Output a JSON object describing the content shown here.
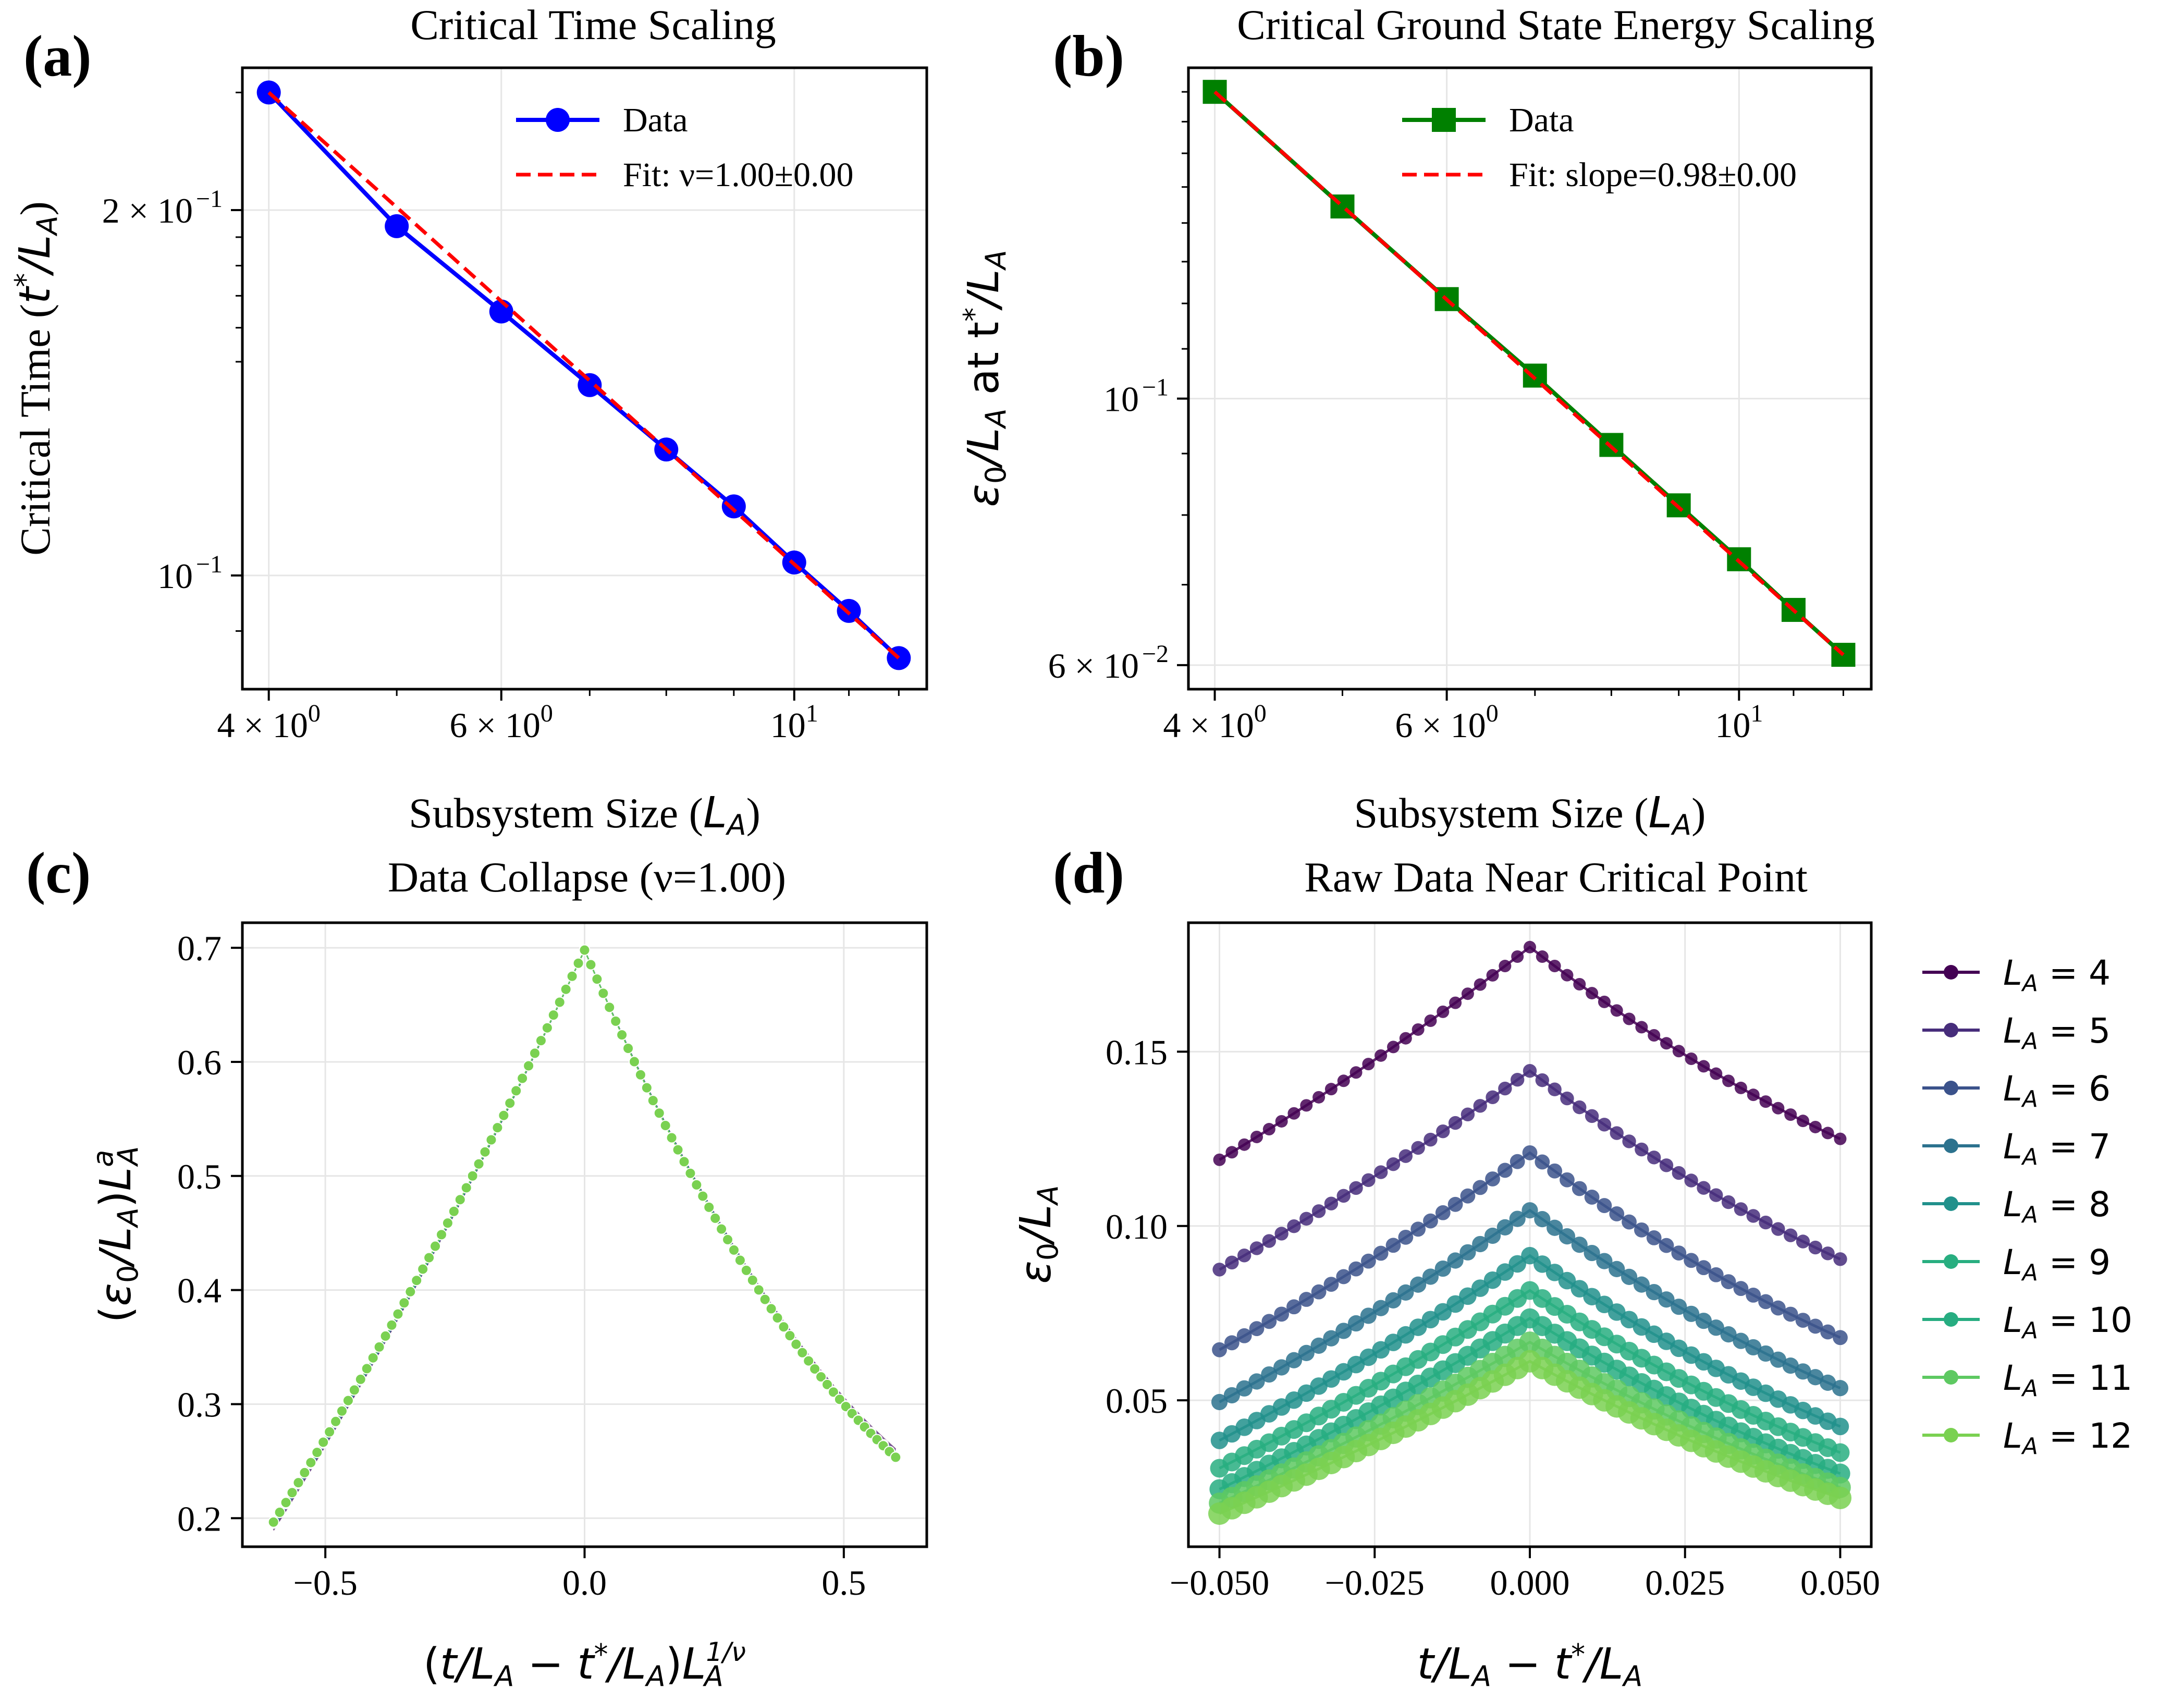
{
  "chart_data": [
    {
      "id": "a",
      "panel_label": "(a)",
      "type": "line",
      "title": "Critical Time Scaling",
      "xlabel": "Subsystem Size (L_A)",
      "ylabel": "Critical Time (t*/L_A)",
      "xscale": "log",
      "yscale": "log",
      "xlim": [
        3.82,
        12.6
      ],
      "ylim": [
        0.0806,
        0.262
      ],
      "xticks": [
        {
          "value": 4,
          "base": "4 × 10",
          "exp": "0"
        },
        {
          "value": 6,
          "base": "6 × 10",
          "exp": "0"
        },
        {
          "value": 10,
          "base": "10",
          "exp": "1"
        }
      ],
      "yticks": [
        {
          "value": 0.2,
          "base": "2 × 10",
          "exp": "−1"
        },
        {
          "value": 0.1,
          "base": "10",
          "exp": "−1"
        }
      ],
      "legend_position": "upper-right",
      "legend": [
        "Data",
        "Fit: ν=1.00±0.00"
      ],
      "colors": {
        "data": "#0000ff",
        "fit": "#ff0000"
      },
      "marker": "circle",
      "series": [
        {
          "name": "Data",
          "x": [
            4,
            5,
            6,
            7,
            8,
            9,
            10,
            11,
            12
          ],
          "y": [
            0.25,
            0.194,
            0.165,
            0.1435,
            0.127,
            0.114,
            0.1025,
            0.0935,
            0.0855
          ]
        },
        {
          "name": "Fit: ν=1.00±0.00",
          "x": [
            4,
            12
          ],
          "y": [
            0.25,
            0.0855
          ]
        }
      ]
    },
    {
      "id": "b",
      "panel_label": "(b)",
      "type": "line",
      "title": "Critical Ground State Energy Scaling",
      "xlabel": "Subsystem Size (L_A)",
      "ylabel": "ε0/L_A at t*/L_A",
      "xscale": "log",
      "yscale": "log",
      "xlim": [
        3.82,
        12.6
      ],
      "ylim": [
        0.0573,
        0.1885
      ],
      "xticks": [
        {
          "value": 4,
          "base": "4 × 10",
          "exp": "0"
        },
        {
          "value": 6,
          "base": "6 × 10",
          "exp": "0"
        },
        {
          "value": 10,
          "base": "10",
          "exp": "1"
        }
      ],
      "yticks": [
        {
          "value": 0.1,
          "base": "10",
          "exp": "−1"
        },
        {
          "value": 0.06,
          "base": "6 × 10",
          "exp": "−2"
        }
      ],
      "legend_position": "upper-right",
      "legend": [
        "Data",
        "Fit: slope=0.98±0.00"
      ],
      "colors": {
        "data": "#008000",
        "fit": "#ff0000"
      },
      "marker": "square",
      "series": [
        {
          "name": "Data",
          "x": [
            4,
            5,
            6,
            7,
            8,
            9,
            10,
            11,
            12
          ],
          "y": [
            0.18,
            0.1445,
            0.121,
            0.1045,
            0.0915,
            0.0815,
            0.0735,
            0.0667,
            0.0612
          ]
        },
        {
          "name": "Fit: slope=0.98±0.00",
          "x": [
            4,
            12
          ],
          "y": [
            0.18,
            0.0612
          ]
        }
      ]
    },
    {
      "id": "c",
      "panel_label": "(c)",
      "type": "scatter",
      "title": "Data Collapse (ν=1.00)",
      "xlabel": "(t/L_A − t*/L_A)L_A^(1/ν)",
      "ylabel": "(ε0/L_A)L_A^a",
      "xlim": [
        -0.66,
        0.66
      ],
      "ylim": [
        0.175,
        0.722
      ],
      "xticks": [
        -0.5,
        0.0,
        0.5
      ],
      "xtick_labels": [
        "−0.5",
        "0.0",
        "0.5"
      ],
      "yticks": [
        0.2,
        0.3,
        0.4,
        0.5,
        0.6,
        0.7
      ],
      "ytick_labels": [
        "0.2",
        "0.3",
        "0.4",
        "0.5",
        "0.6",
        "0.7"
      ],
      "grid": true,
      "collapse_sizes": [
        4,
        5,
        6,
        7,
        8,
        9,
        10,
        11,
        12
      ],
      "collapse_peak": 0.698,
      "collapse_left_end": 0.193,
      "collapse_right_end": 0.257
    },
    {
      "id": "d",
      "panel_label": "(d)",
      "type": "line",
      "title": "Raw Data Near Critical Point",
      "xlabel": "t/L_A − t*/L_A",
      "ylabel": "ε0/L_A",
      "xlim": [
        -0.055,
        0.055
      ],
      "ylim": [
        0.008,
        0.187
      ],
      "xticks": [
        -0.05,
        -0.025,
        0.0,
        0.025,
        0.05
      ],
      "xtick_labels": [
        "−0.050",
        "−0.025",
        "0.000",
        "0.025",
        "0.050"
      ],
      "yticks": [
        0.05,
        0.1,
        0.15
      ],
      "ytick_labels": [
        "0.05",
        "0.10",
        "0.15"
      ],
      "grid": true,
      "legend_position": "outside-right",
      "points_per_series": 51,
      "series": [
        {
          "name": "L_A = 4",
          "L": 4,
          "peak": 0.18,
          "left": 0.119,
          "right": 0.125,
          "color": "#440154"
        },
        {
          "name": "L_A = 5",
          "L": 5,
          "peak": 0.1445,
          "left": 0.0875,
          "right": 0.0905,
          "color": "#472d7b"
        },
        {
          "name": "L_A = 6",
          "L": 6,
          "peak": 0.121,
          "left": 0.0645,
          "right": 0.068,
          "color": "#3b528b"
        },
        {
          "name": "L_A = 7",
          "L": 7,
          "peak": 0.1045,
          "left": 0.0495,
          "right": 0.0535,
          "color": "#2c728e"
        },
        {
          "name": "L_A = 8",
          "L": 8,
          "peak": 0.0915,
          "left": 0.0385,
          "right": 0.0425,
          "color": "#21918c"
        },
        {
          "name": "L_A = 9",
          "L": 9,
          "peak": 0.0815,
          "left": 0.0305,
          "right": 0.035,
          "color": "#28ae80"
        },
        {
          "name": "L_A = 10",
          "L": 10,
          "peak": 0.0735,
          "left": 0.0245,
          "right": 0.029,
          "color": "#27ad81"
        },
        {
          "name": "L_A = 11",
          "L": 11,
          "peak": 0.0667,
          "left": 0.0205,
          "right": 0.025,
          "color": "#5ec962"
        },
        {
          "name": "L_A = 12",
          "L": 12,
          "peak": 0.0612,
          "left": 0.0175,
          "right": 0.022,
          "color": "#7ad151"
        }
      ]
    }
  ]
}
